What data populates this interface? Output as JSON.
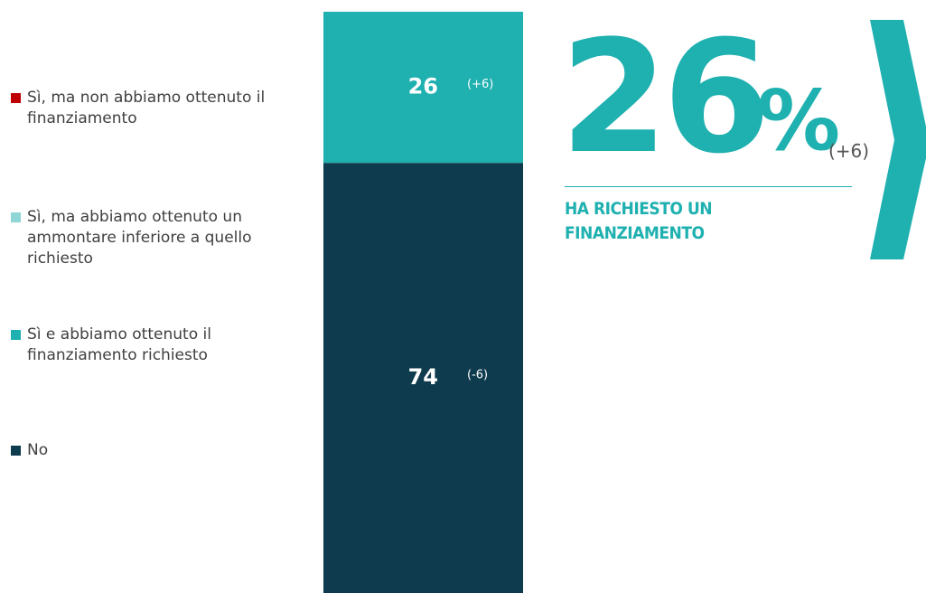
{
  "chart_data": {
    "type": "stacked_bar",
    "categories": [
      null
    ],
    "ylim": [
      0,
      100
    ],
    "series": [
      {
        "name": "Sì, ma non abbiamo ottenuto il finanziamento",
        "color": "#c00000",
        "values": [
          0
        ]
      },
      {
        "name": "Sì, ma abbiamo ottenuto un ammontare inferiore a quello richiesto",
        "color": "#8fd6d6",
        "values": [
          0
        ]
      },
      {
        "name": "Sì e abbiamo ottenuto il finanziamento richiesto",
        "color": "#1fb0b0",
        "values": [
          26
        ],
        "change_label": "(+6)"
      },
      {
        "name": "No",
        "color": "#0f3b4e",
        "values": [
          74
        ],
        "change_label": "(-6)"
      }
    ],
    "callout": {
      "value": 26,
      "unit": "%",
      "change": "(+6)",
      "text": "HA RICHIESTO UN FINANZIAMENTO",
      "color": "#1fb0b0"
    }
  }
}
